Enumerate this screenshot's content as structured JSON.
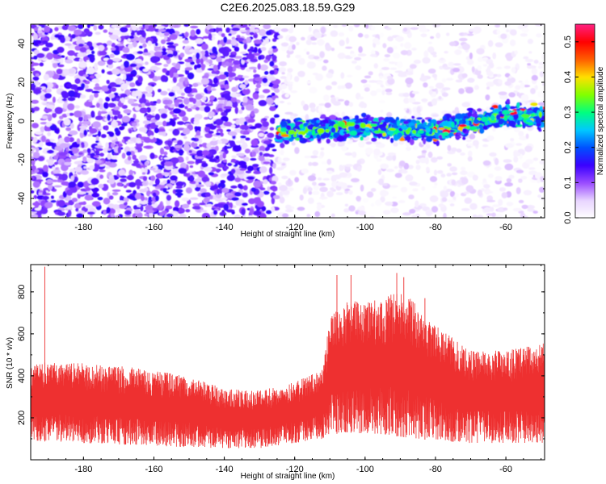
{
  "figure_title": "C2E6.2025.083.18.59.G29",
  "chart_data": [
    {
      "type": "heatmap",
      "xlabel": "Height of straight line (km)",
      "ylabel": "Frequency (Hz)",
      "xlim": [
        -195,
        -49
      ],
      "ylim": [
        -50,
        50
      ],
      "xticks": [
        -180,
        -160,
        -140,
        -120,
        -100,
        -80,
        -60
      ],
      "yticks": [
        -40,
        -20,
        0,
        20,
        40
      ],
      "colorbar": {
        "label": "Normalized spectral amplitude",
        "range": [
          0.0,
          0.55
        ],
        "ticks": [
          "0.0",
          "0.1",
          "0.2",
          "0.3",
          "0.4",
          "0.5"
        ],
        "colormap": [
          "#ffffff",
          "#e8d4ff",
          "#9a4cff",
          "#3a00ff",
          "#0050ff",
          "#00c8ff",
          "#00ff80",
          "#80ff00",
          "#ffe000",
          "#ff6000",
          "#ff0000",
          "#ff2080"
        ]
      },
      "band": {
        "center_hz": [
          [
            -125,
            -6
          ],
          [
            -100,
            -3
          ],
          [
            -80,
            -5
          ],
          [
            -60,
            3
          ],
          [
            -49,
            2
          ]
        ],
        "half_width_hz": 8,
        "x_start": -125,
        "peak_amplitude": 0.52
      },
      "noise_regions": [
        {
          "x_range": [
            -195,
            -125
          ],
          "mean_amplitude": 0.08
        },
        {
          "x_range": [
            -125,
            -49
          ],
          "mean_amplitude": 0.03
        }
      ]
    },
    {
      "type": "line",
      "xlabel": "Height of straight line (km)",
      "ylabel": "SNR (10 * v/v)",
      "xlim": [
        -195,
        -49
      ],
      "ylim": [
        0,
        930
      ],
      "xticks": [
        -180,
        -160,
        -140,
        -120,
        -100,
        -80,
        -60
      ],
      "yticks": [
        200,
        400,
        600,
        800
      ],
      "series": [
        {
          "color": "#ee3030",
          "envelope": {
            "x": [
              -195,
              -180,
              -165,
              -150,
              -140,
              -130,
              -120,
              -112,
              -110,
              -105,
              -95,
              -90,
              -80,
              -70,
              -60,
              -49
            ],
            "low": [
              90,
              80,
              70,
              60,
              55,
              55,
              80,
              100,
              120,
              130,
              120,
              110,
              90,
              80,
              80,
              80
            ],
            "high": [
              470,
              460,
              440,
              400,
              340,
              330,
              370,
              430,
              680,
              760,
              760,
              820,
              640,
              520,
              520,
              560
            ]
          },
          "peaks": [
            {
              "x": -191,
              "y": 920
            },
            {
              "x": -108,
              "y": 880
            },
            {
              "x": -104,
              "y": 880
            },
            {
              "x": -91,
              "y": 890
            },
            {
              "x": -89,
              "y": 870
            },
            {
              "x": -83,
              "y": 770
            }
          ]
        }
      ]
    }
  ]
}
